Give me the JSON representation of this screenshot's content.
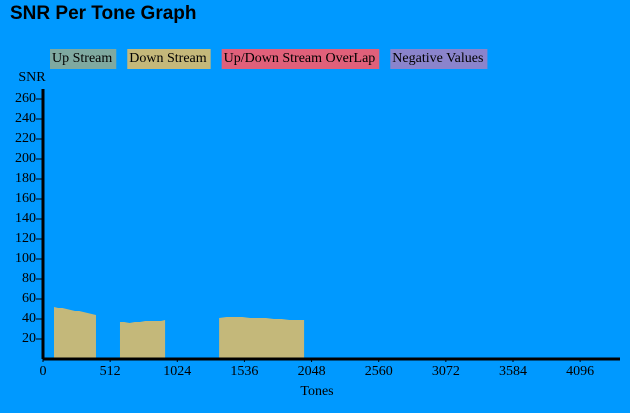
{
  "chart_data": {
    "type": "area",
    "title": "SNR Per Tone Graph",
    "x_label": "Tones",
    "y_label": "SNR",
    "xlim": [
      0,
      4400
    ],
    "xticks": [
      0,
      512,
      1024,
      1536,
      2048,
      2560,
      3072,
      3584,
      4096
    ],
    "ylim": [
      0,
      270
    ],
    "yticks": [
      20,
      40,
      60,
      80,
      100,
      120,
      140,
      160,
      180,
      200,
      220,
      240,
      260
    ],
    "series": [
      {
        "name": "Up Stream",
        "color": "#7fa9a0",
        "x": [],
        "values": []
      },
      {
        "name": "Down Stream",
        "color": "#c4b87a",
        "x": [
          84,
          116,
          148,
          180,
          212,
          244,
          276,
          308,
          340,
          372,
          404,
          500,
          587,
          620,
          660,
          700,
          740,
          780,
          820,
          860,
          900,
          931,
          1100,
          1343,
          1400,
          1460,
          1520,
          1580,
          1640,
          1700,
          1760,
          1820,
          1880,
          1940,
          1991
        ],
        "values": [
          52,
          51,
          51,
          50,
          49,
          48,
          48,
          47,
          46,
          45,
          44,
          null,
          37,
          37,
          36,
          37,
          37,
          38,
          38,
          38,
          38,
          39,
          null,
          41,
          42,
          42,
          42,
          41,
          41,
          41,
          40,
          40,
          39,
          39,
          39
        ]
      },
      {
        "name": "Up/Down Stream OverLap",
        "color": "#e0607a",
        "x": [],
        "values": []
      },
      {
        "name": "Negative Values",
        "color": "#8a84cc",
        "x": [],
        "values": []
      }
    ]
  }
}
